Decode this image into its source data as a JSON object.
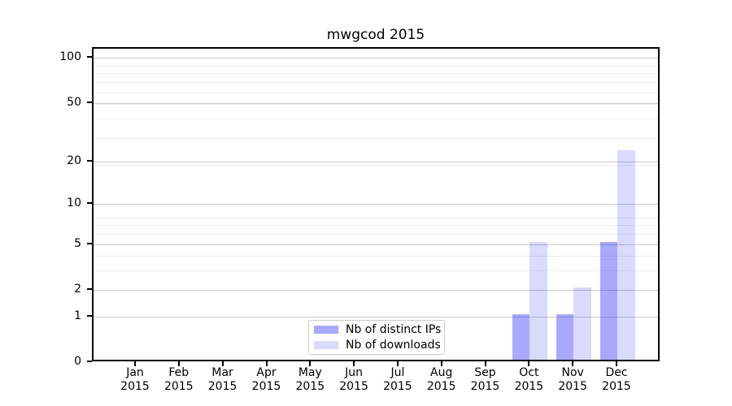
{
  "title": "mwgcod 2015",
  "colors": {
    "bar_ips_fill": "rgba(22,22,245,0.37)",
    "bar_downloads_fill": "rgba(22,22,245,0.155)",
    "bar_ips_hex": "#a9a7fa",
    "bar_downloads_hex": "#dbdaf9",
    "grid_major": "#c9c9c9",
    "grid_minor": "#ececec",
    "spine": "#000000",
    "text": "#000000"
  },
  "legend": {
    "items": [
      {
        "label": "Nb of distinct IPs"
      },
      {
        "label": "Nb of downloads"
      }
    ]
  },
  "chart_data": {
    "type": "bar",
    "title": "mwgcod 2015",
    "categories": [
      "Jan 2015",
      "Feb 2015",
      "Mar 2015",
      "Apr 2015",
      "May 2015",
      "Jun 2015",
      "Jul 2015",
      "Aug 2015",
      "Sep 2015",
      "Oct 2015",
      "Nov 2015",
      "Dec 2015"
    ],
    "series": [
      {
        "name": "Nb of distinct IPs",
        "values": [
          0,
          0,
          0,
          0,
          0,
          0,
          0,
          0,
          0,
          1,
          1,
          5
        ],
        "fill": "rgba(22,22,245,0.37)",
        "hex": "#a9a7fa"
      },
      {
        "name": "Nb of downloads",
        "values": [
          0,
          0,
          0,
          0,
          0,
          0,
          0,
          0,
          0,
          5,
          2,
          23
        ],
        "fill": "rgba(22,22,245,0.155)",
        "hex": "#dbdaf9"
      }
    ],
    "xlabel": "",
    "ylabel": "",
    "yscale": "log10(1+y)",
    "yticks": [
      0,
      1,
      2,
      5,
      10,
      20,
      50,
      100
    ],
    "ylim": [
      0,
      116
    ],
    "grid": "horizontal major+minor",
    "legend_position": "inside lower-center"
  }
}
